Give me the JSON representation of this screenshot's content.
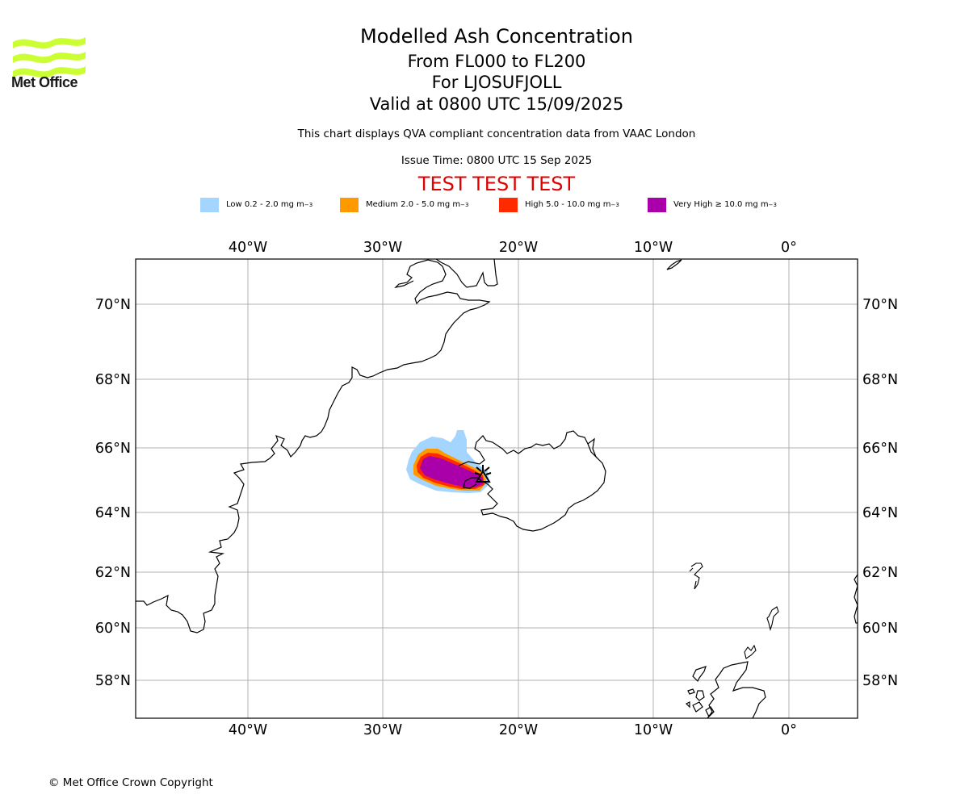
{
  "header": {
    "title": "Modelled Ash Concentration",
    "subtitle_levels": "From FL000 to FL200",
    "subtitle_volcano": "For LJOSUFJOLL",
    "subtitle_valid": "Valid at 0800 UTC 15/09/2025",
    "description": "This chart displays QVA compliant concentration data from VAAC London",
    "issue_time": "Issue Time: 0800 UTC 15 Sep 2025",
    "test_banner": "TEST TEST TEST"
  },
  "logo": {
    "text": "Met Office",
    "color": "#ccff33"
  },
  "legend": [
    {
      "label": "Low 0.2 - 2.0 mg m",
      "color": "#a3d5ff"
    },
    {
      "label": "Medium 2.0 - 5.0 mg m",
      "color": "#ff9900"
    },
    {
      "label": "High 5.0 - 10.0 mg m",
      "color": "#ff2a00"
    },
    {
      "label": "Very High ≥ 10.0 mg m",
      "color": "#aa00aa"
    }
  ],
  "legend_unit_exp": "−3",
  "map": {
    "lon_ticks": [
      "40°W",
      "30°W",
      "20°W",
      "10°W",
      "0°"
    ],
    "lat_ticks": [
      "70°N",
      "68°N",
      "66°N",
      "64°N",
      "62°N",
      "60°N",
      "58°N"
    ],
    "volcano_marker": "volcano-icon"
  },
  "footer": {
    "copyright": "© Met Office Crown Copyright"
  }
}
